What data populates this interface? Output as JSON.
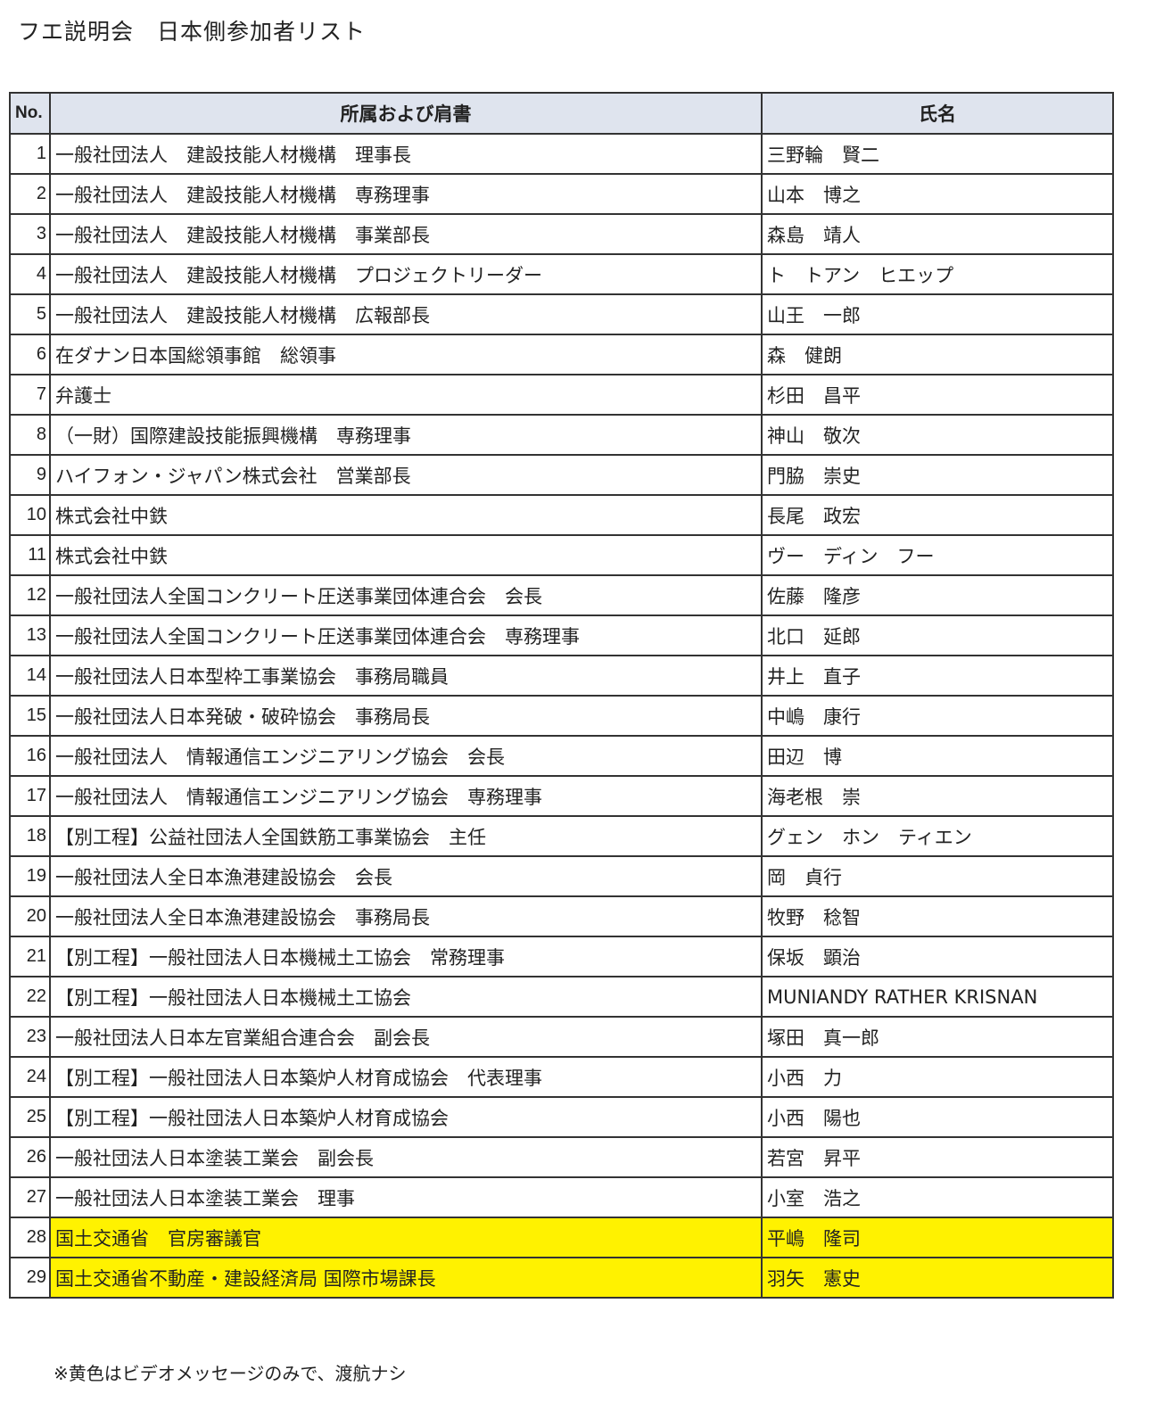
{
  "title": "フエ説明会　日本側参加者リスト",
  "table": {
    "headers": {
      "no": "No.",
      "affiliation": "所属および肩書",
      "name": "氏名"
    },
    "header_bg": "#dfe4ee",
    "highlight_color": "#fff200",
    "rows": [
      {
        "no": "1",
        "affiliation": "一般社団法人　建設技能人材機構　理事長",
        "name": "三野輪　賢二",
        "highlight": false
      },
      {
        "no": "2",
        "affiliation": "一般社団法人　建設技能人材機構　専務理事",
        "name": "山本　博之",
        "highlight": false
      },
      {
        "no": "3",
        "affiliation": "一般社団法人　建設技能人材機構　事業部長",
        "name": "森島　靖人",
        "highlight": false
      },
      {
        "no": "4",
        "affiliation": "一般社団法人　建設技能人材機構　プロジェクトリーダー",
        "name": "ト　トアン　ヒエップ",
        "highlight": false
      },
      {
        "no": "5",
        "affiliation": "一般社団法人　建設技能人材機構　広報部長",
        "name": "山王　一郎",
        "highlight": false
      },
      {
        "no": "6",
        "affiliation": "在ダナン日本国総領事館　総領事",
        "name": "森　健朗",
        "highlight": false
      },
      {
        "no": "7",
        "affiliation": "弁護士",
        "name": "杉田　昌平",
        "highlight": false
      },
      {
        "no": "8",
        "affiliation": "（一財）国際建設技能振興機構　専務理事",
        "name": "神山　敬次",
        "highlight": false
      },
      {
        "no": "9",
        "affiliation": "ハイフォン・ジャパン株式会社　営業部長",
        "name": "門脇　崇史",
        "highlight": false
      },
      {
        "no": "10",
        "affiliation": "株式会社中鉄",
        "name": "長尾　政宏",
        "highlight": false
      },
      {
        "no": "11",
        "affiliation": "株式会社中鉄",
        "name": "ヴー　ディン　フー",
        "highlight": false
      },
      {
        "no": "12",
        "affiliation": "一般社団法人全国コンクリート圧送事業団体連合会　会長",
        "name": "佐藤　隆彦",
        "highlight": false
      },
      {
        "no": "13",
        "affiliation": "一般社団法人全国コンクリート圧送事業団体連合会　専務理事",
        "name": "北口　延郎",
        "highlight": false
      },
      {
        "no": "14",
        "affiliation": "一般社団法人日本型枠工事業協会　事務局職員",
        "name": "井上　直子",
        "highlight": false
      },
      {
        "no": "15",
        "affiliation": "一般社団法人日本発破・破砕協会　事務局長",
        "name": "中嶋　康行",
        "highlight": false
      },
      {
        "no": "16",
        "affiliation": "一般社団法人　情報通信エンジニアリング協会　会長",
        "name": "田辺　博",
        "highlight": false
      },
      {
        "no": "17",
        "affiliation": "一般社団法人　情報通信エンジニアリング協会　専務理事",
        "name": "海老根　崇",
        "highlight": false
      },
      {
        "no": "18",
        "affiliation": "【別工程】公益社団法人全国鉄筋工事業協会　主任",
        "name": "グェン　ホン　ティエン",
        "highlight": false
      },
      {
        "no": "19",
        "affiliation": "一般社団法人全日本漁港建設協会　会長",
        "name": "岡　貞行",
        "highlight": false
      },
      {
        "no": "20",
        "affiliation": "一般社団法人全日本漁港建設協会　事務局長",
        "name": "牧野　稔智",
        "highlight": false
      },
      {
        "no": "21",
        "affiliation": "【別工程】一般社団法人日本機械土工協会　常務理事",
        "name": "保坂　顕治",
        "highlight": false
      },
      {
        "no": "22",
        "affiliation": "【別工程】一般社団法人日本機械土工協会",
        "name": "MUNIANDY RATHER KRISNAN",
        "highlight": false
      },
      {
        "no": "23",
        "affiliation": "一般社団法人日本左官業組合連合会　副会長",
        "name": "塚田　真一郎",
        "highlight": false
      },
      {
        "no": "24",
        "affiliation": "【別工程】一般社団法人日本築炉人材育成協会　代表理事",
        "name": "小西　力",
        "highlight": false
      },
      {
        "no": "25",
        "affiliation": "【別工程】一般社団法人日本築炉人材育成協会",
        "name": "小西　陽也",
        "highlight": false
      },
      {
        "no": "26",
        "affiliation": "一般社団法人日本塗装工業会　副会長",
        "name": "若宮　昇平",
        "highlight": false
      },
      {
        "no": "27",
        "affiliation": "一般社団法人日本塗装工業会　理事",
        "name": "小室　浩之",
        "highlight": false
      },
      {
        "no": "28",
        "affiliation": "国土交通省　官房審議官",
        "name": "平嶋　隆司",
        "highlight": true
      },
      {
        "no": "29",
        "affiliation": "国土交通省不動産・建設経済局 国際市場課長",
        "name": "羽矢　憲史",
        "highlight": true
      }
    ]
  },
  "footnote": "※黄色はビデオメッセージのみで、渡航ナシ"
}
